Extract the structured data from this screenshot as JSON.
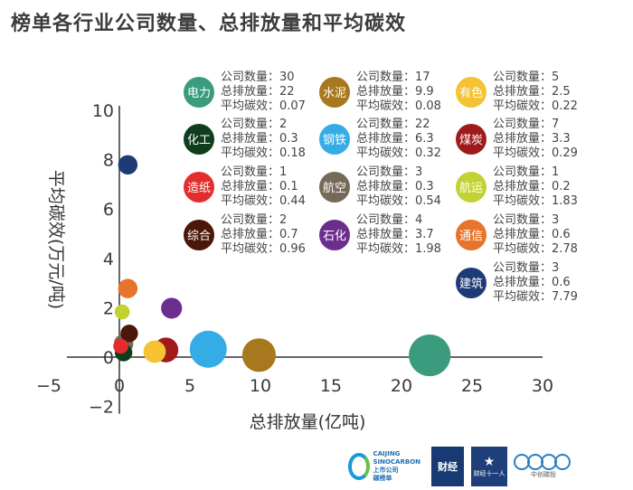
{
  "title": "榜单各行业公司数量、总排放量和平均碳效",
  "legend_labels": {
    "count": "公司数量：",
    "emission": "总排放量：",
    "efficiency": "平均碳效："
  },
  "chart_data": {
    "type": "scatter",
    "bubble_size": "count",
    "xlabel": "总排放量(亿吨)",
    "ylabel": "平均碳效(万元/吨)",
    "xlim": [
      -5,
      30
    ],
    "ylim": [
      -2,
      10
    ],
    "xticks": [
      -5,
      0,
      5,
      10,
      15,
      20,
      25,
      30
    ],
    "yticks": [
      -2,
      0,
      2,
      4,
      6,
      8,
      10
    ],
    "grid": false,
    "legend_position": "upper-right",
    "series": [
      {
        "name": "电力",
        "count": "30",
        "emission": "22",
        "efficiency": "0.07",
        "color": "#3a9b7d"
      },
      {
        "name": "水泥",
        "count": "17",
        "emission": "9.9",
        "efficiency": "0.08",
        "color": "#a8781e"
      },
      {
        "name": "有色",
        "count": "5",
        "emission": "2.5",
        "efficiency": "0.22",
        "color": "#f4c233"
      },
      {
        "name": "化工",
        "count": "2",
        "emission": "0.3",
        "efficiency": "0.18",
        "color": "#0f3d1e"
      },
      {
        "name": "钢铁",
        "count": "22",
        "emission": "6.3",
        "efficiency": "0.32",
        "color": "#35ace5"
      },
      {
        "name": "煤炭",
        "count": "7",
        "emission": "3.3",
        "efficiency": "0.29",
        "color": "#9f1b1b"
      },
      {
        "name": "造纸",
        "count": "1",
        "emission": "0.1",
        "efficiency": "0.44",
        "color": "#e52c2c"
      },
      {
        "name": "航空",
        "count": "3",
        "emission": "0.3",
        "efficiency": "0.54",
        "color": "#77695a"
      },
      {
        "name": "航运",
        "count": "1",
        "emission": "0.2",
        "efficiency": "1.83",
        "color": "#c3d233"
      },
      {
        "name": "综合",
        "count": "2",
        "emission": "0.7",
        "efficiency": "0.96",
        "color": "#4a1708"
      },
      {
        "name": "石化",
        "count": "4",
        "emission": "3.7",
        "efficiency": "1.98",
        "color": "#6b2e8e"
      },
      {
        "name": "通信",
        "count": "3",
        "emission": "0.6",
        "efficiency": "2.78",
        "color": "#e8732a"
      },
      {
        "name": "建筑",
        "count": "3",
        "emission": "0.6",
        "efficiency": "7.79",
        "color": "#1f3b77"
      }
    ]
  },
  "footer": {
    "logo1_line1": "CAIJING",
    "logo1_line2": "SINOCARBON",
    "logo1_line3": "上市公司",
    "logo1_line4": "碳榜单",
    "logo2": "财经",
    "logo3": "财经十一人",
    "logo4": "中创碳投"
  }
}
